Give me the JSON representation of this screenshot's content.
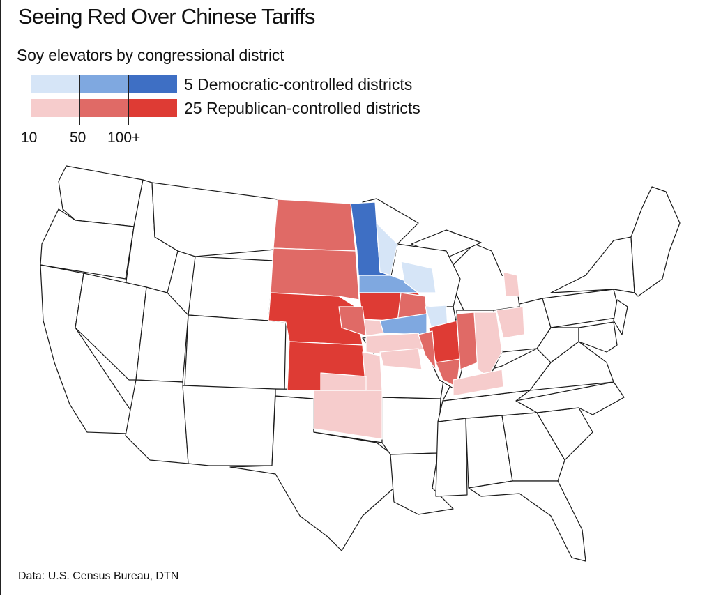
{
  "title": "Seeing Red Over Chinese Tariffs",
  "subtitle": "Soy elevators by congressional district",
  "legend": {
    "democratic_label": "5 Democratic-controlled districts",
    "republican_label": "25 Republican-controlled districts",
    "ticks": [
      "10",
      "50",
      "100+"
    ],
    "democratic_colors": [
      "#d6e5f7",
      "#7fa8e0",
      "#3e6fc4"
    ],
    "republican_colors": [
      "#f6cccc",
      "#e06a66",
      "#de3b34"
    ]
  },
  "source": "Data: U.S. Census Bureau, DTN"
}
